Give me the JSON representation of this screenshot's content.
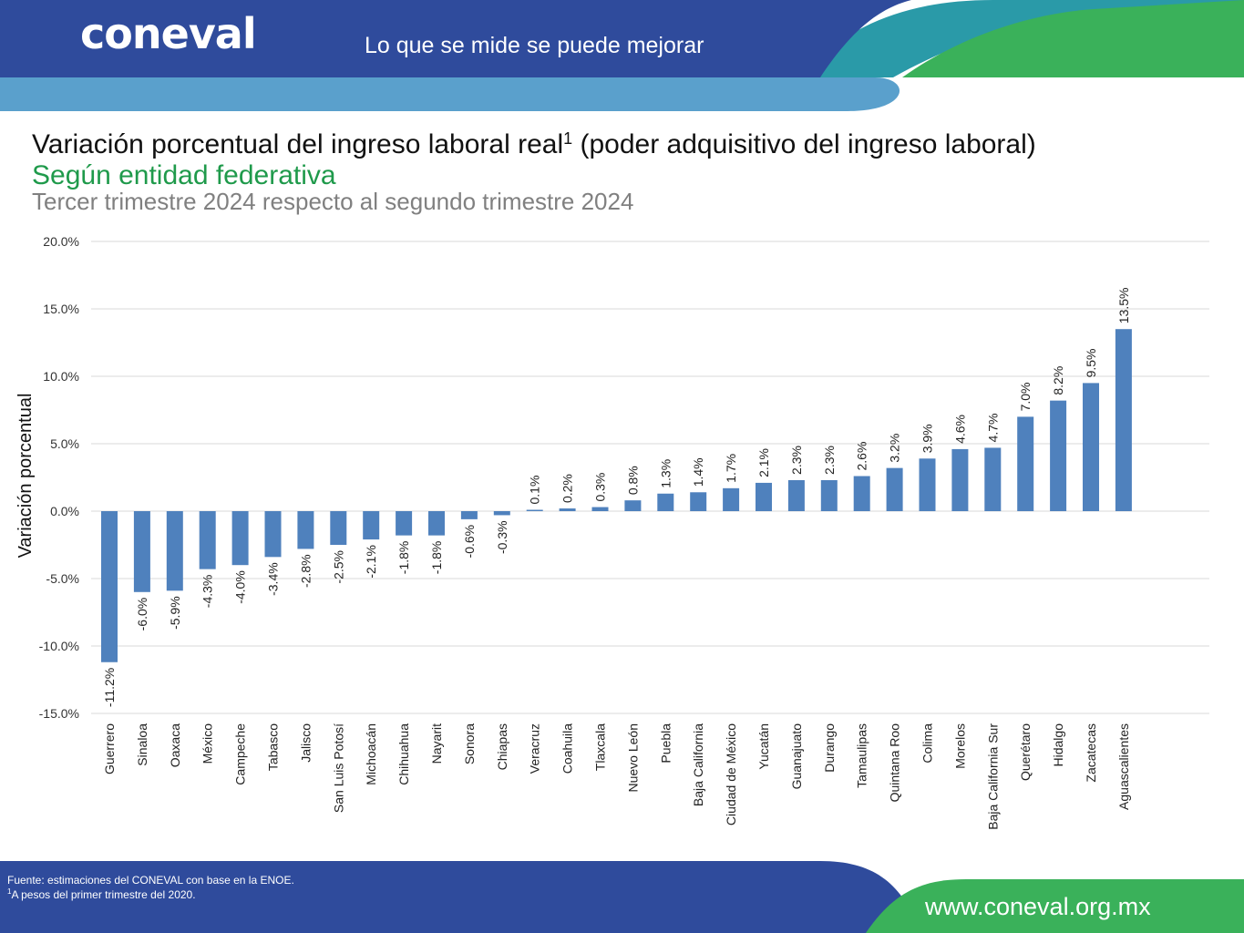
{
  "header": {
    "logo_text": "CONEVAL",
    "tagline": "Lo que se mide se puede mejorar",
    "colors": {
      "blue": "#2f4b9c",
      "light_blue": "#5aa0cc",
      "teal": "#2a9aa8",
      "green": "#3ab15a"
    }
  },
  "footer": {
    "source": "Fuente: estimaciones del CONEVAL con base en la ENOE.",
    "note_mark": "1",
    "note": "A pesos del primer trimestre del 2020.",
    "url": "www.coneval.org.mx"
  },
  "chart_data": {
    "type": "bar",
    "title": "Variación porcentual del ingreso laboral real",
    "title_superscript": "1",
    "title_suffix": " (poder adquisitivo del ingreso laboral)",
    "subtitle": "Según entidad federativa",
    "period": "Tercer trimestre 2024 respecto al segundo trimestre 2024",
    "ylabel": "Variación porcentual",
    "xlabel": "",
    "ylim": [
      -15,
      20
    ],
    "yticks": [
      -15,
      -10,
      -5,
      0,
      5,
      10,
      15,
      20
    ],
    "ytick_labels": [
      "-15.0%",
      "-10.0%",
      "-5.0%",
      "0.0%",
      "5.0%",
      "10.0%",
      "15.0%",
      "20.0%"
    ],
    "grid": true,
    "bar_color": "#4f81bd",
    "categories": [
      "Guerrero",
      "Sinaloa",
      "Oaxaca",
      "México",
      "Campeche",
      "Tabasco",
      "Jalisco",
      "San Luis Potosí",
      "Michoacán",
      "Chihuahua",
      "Nayarit",
      "Sonora",
      "Chiapas",
      "Veracruz",
      "Coahuila",
      "Tlaxcala",
      "Nuevo León",
      "Puebla",
      "Baja California",
      "Ciudad de México",
      "Yucatán",
      "Guanajuato",
      "Durango",
      "Tamaulipas",
      "Quintana Roo",
      "Colima",
      "Morelos",
      "Baja California Sur",
      "Querétaro",
      "Hidalgo",
      "Zacatecas",
      "Aguascalientes"
    ],
    "values": [
      -11.2,
      -6.0,
      -5.9,
      -4.3,
      -4.0,
      -3.4,
      -2.8,
      -2.5,
      -2.1,
      -1.8,
      -1.8,
      -0.6,
      -0.3,
      0.1,
      0.2,
      0.3,
      0.8,
      1.3,
      1.4,
      1.7,
      2.1,
      2.3,
      2.3,
      2.6,
      3.2,
      3.9,
      4.6,
      4.7,
      7.0,
      8.2,
      9.5,
      13.5
    ],
    "value_labels": [
      "-11.2%",
      "-6.0%",
      "-5.9%",
      "-4.3%",
      "-4.0%",
      "-3.4%",
      "-2.8%",
      "-2.5%",
      "-2.1%",
      "-1.8%",
      "-1.8%",
      "-0.6%",
      "-0.3%",
      "0.1%",
      "0.2%",
      "0.3%",
      "0.8%",
      "1.3%",
      "1.4%",
      "1.7%",
      "2.1%",
      "2.3%",
      "2.3%",
      "2.6%",
      "3.2%",
      "3.9%",
      "4.6%",
      "4.7%",
      "7.0%",
      "8.2%",
      "9.5%",
      "13.5%"
    ]
  }
}
